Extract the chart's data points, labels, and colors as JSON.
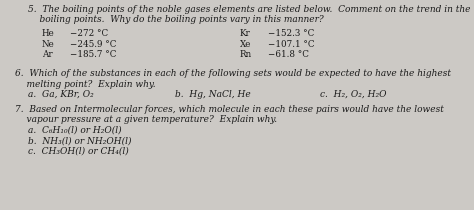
{
  "bg_color": "#ccc9c5",
  "text_color": "#1a1a1a",
  "q5_line1": "5.  The boiling points of the noble gases elements are listed below.  Comment on the trend in the",
  "q5_line2": "    boiling points.  Why do the boiling points vary in this manner?",
  "noble_gases_left": [
    [
      "He",
      "−272 °C"
    ],
    [
      "Ne",
      "−245.9 °C"
    ],
    [
      "Ar",
      "−185.7 °C"
    ]
  ],
  "noble_gases_right": [
    [
      "Kr",
      "−152.3 °C"
    ],
    [
      "Xe",
      "−107.1 °C"
    ],
    [
      "Rn",
      "−61.8 °C"
    ]
  ],
  "q6_line1": "6.  Which of the substances in each of the following sets would be expected to have the highest",
  "q6_line2": "    melting point?  Explain why.",
  "q6_a": "a.  Ga, KBr, O₂",
  "q6_b": "b.  Hg, NaCl, He",
  "q6_c": "c.  H₂, O₂, H₂O",
  "q7_line1": "7.  Based on Intermolecular forces, which molecule in each these pairs would have the lowest",
  "q7_line2": "    vapour pressure at a given temperature?  Explain why.",
  "q7_a": "a.  C₆H₁₀(l) or H₂O(l)",
  "q7_b": "b.  NH₃(l) or NH₂OH(l)",
  "q7_c": "c.  CH₃OH(l) or CH₄(l)",
  "fs": 6.5,
  "fs_data": 6.3,
  "lh": 10.5
}
